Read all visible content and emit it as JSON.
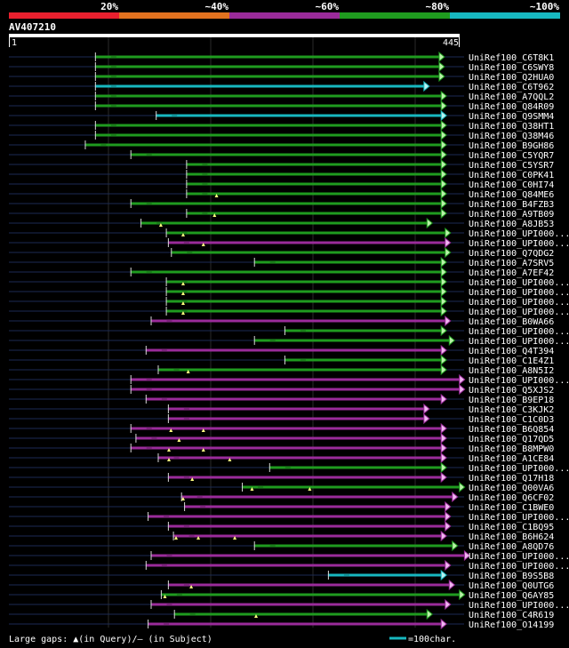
{
  "identity_scale": {
    "segments": [
      {
        "label": "20%",
        "color": "#e8202e"
      },
      {
        "label": "~40%",
        "color": "#e2721f"
      },
      {
        "label": "~60%",
        "color": "#9a2b9a"
      },
      {
        "label": "~80%",
        "color": "#1f9b1f"
      },
      {
        "label": "~100%",
        "color": "#17b8c0"
      }
    ]
  },
  "query": {
    "id": "AV407210",
    "start": 1,
    "end": 445,
    "start_label": "1",
    "end_label": "445"
  },
  "colors": {
    "background": "#000000",
    "query_bar": "#ffffff",
    "grid": "#2a2a2a",
    "unaligned_line": "#1b2a55",
    "gap_marker": "#ffff80"
  },
  "legend": {
    "text": "Large gaps: ▲(in Query)/– (in Subject)",
    "scale_text": "=100char.",
    "scale_color": "#17b8c0",
    "scale_length": 100
  },
  "chart_data": {
    "type": "alignment_overview",
    "query_length": 445,
    "alignments": [
      {
        "name": "UniRef100_C6T8K1",
        "start": 85,
        "end": 430,
        "cls": "green",
        "gaps": []
      },
      {
        "name": "UniRef100_C6SWY8",
        "start": 85,
        "end": 430,
        "cls": "green",
        "gaps": []
      },
      {
        "name": "UniRef100_Q2HUA0",
        "start": 85,
        "end": 430,
        "cls": "green",
        "gaps": []
      },
      {
        "name": "UniRef100_C6T962",
        "start": 85,
        "end": 415,
        "cls": "cyan",
        "gaps": []
      },
      {
        "name": "UniRef100_A7QQL2",
        "start": 85,
        "end": 432,
        "cls": "green",
        "gaps": []
      },
      {
        "name": "UniRef100_Q84R09",
        "start": 85,
        "end": 432,
        "cls": "green",
        "gaps": []
      },
      {
        "name": "UniRef100_Q9SMM4",
        "start": 145,
        "end": 432,
        "cls": "cyan",
        "gaps": []
      },
      {
        "name": "UniRef100_Q38HT1",
        "start": 85,
        "end": 432,
        "cls": "green",
        "gaps": []
      },
      {
        "name": "UniRef100_Q38M46",
        "start": 85,
        "end": 432,
        "cls": "green",
        "gaps": []
      },
      {
        "name": "UniRef100_B9GH86",
        "start": 75,
        "end": 432,
        "cls": "green",
        "gaps": []
      },
      {
        "name": "UniRef100_C5YQR7",
        "start": 120,
        "end": 432,
        "cls": "green",
        "gaps": []
      },
      {
        "name": "UniRef100_C5YSR7",
        "start": 175,
        "end": 432,
        "cls": "green",
        "gaps": []
      },
      {
        "name": "UniRef100_C0PK41",
        "start": 175,
        "end": 432,
        "cls": "green",
        "gaps": []
      },
      {
        "name": "UniRef100_C0HI74",
        "start": 175,
        "end": 432,
        "cls": "green",
        "gaps": []
      },
      {
        "name": "UniRef100_Q84ME6",
        "start": 175,
        "end": 432,
        "cls": "green",
        "gaps": [
          205
        ]
      },
      {
        "name": "UniRef100_B4FZB3",
        "start": 120,
        "end": 432,
        "cls": "green",
        "gaps": []
      },
      {
        "name": "UniRef100_A9TB09",
        "start": 175,
        "end": 432,
        "cls": "green",
        "gaps": [
          203
        ]
      },
      {
        "name": "UniRef100_A8JB53",
        "start": 130,
        "end": 418,
        "cls": "green",
        "gaps": [
          150
        ]
      },
      {
        "name": "UniRef100_UPI000...",
        "start": 155,
        "end": 436,
        "cls": "green",
        "gaps": [
          172
        ]
      },
      {
        "name": "UniRef100_UPI000...",
        "start": 157,
        "end": 436,
        "cls": "purple",
        "gaps": [
          192
        ]
      },
      {
        "name": "UniRef100_Q7QDG2",
        "start": 160,
        "end": 436,
        "cls": "green",
        "gaps": []
      },
      {
        "name": "UniRef100_A7SRV5",
        "start": 242,
        "end": 432,
        "cls": "green",
        "gaps": []
      },
      {
        "name": "UniRef100_A7EF42",
        "start": 120,
        "end": 432,
        "cls": "green",
        "gaps": []
      },
      {
        "name": "UniRef100_UPI000...",
        "start": 155,
        "end": 432,
        "cls": "green",
        "gaps": [
          172
        ]
      },
      {
        "name": "UniRef100_UPI000...",
        "start": 155,
        "end": 432,
        "cls": "green",
        "gaps": [
          172
        ]
      },
      {
        "name": "UniRef100_UPI000...",
        "start": 155,
        "end": 432,
        "cls": "green",
        "gaps": [
          172
        ]
      },
      {
        "name": "UniRef100_UPI000...",
        "start": 155,
        "end": 432,
        "cls": "green",
        "gaps": [
          172
        ]
      },
      {
        "name": "UniRef100_B0WA66",
        "start": 140,
        "end": 436,
        "cls": "purple",
        "gaps": []
      },
      {
        "name": "UniRef100_UPI000...",
        "start": 272,
        "end": 432,
        "cls": "green",
        "gaps": []
      },
      {
        "name": "UniRef100_UPI000...",
        "start": 242,
        "end": 440,
        "cls": "green",
        "gaps": []
      },
      {
        "name": "UniRef100_Q4T394",
        "start": 135,
        "end": 432,
        "cls": "purple",
        "gaps": []
      },
      {
        "name": "UniRef100_C1E4Z1",
        "start": 272,
        "end": 432,
        "cls": "green",
        "gaps": []
      },
      {
        "name": "UniRef100_A8N5I2",
        "start": 147,
        "end": 432,
        "cls": "green",
        "gaps": [
          177
        ]
      },
      {
        "name": "UniRef100_UPI000...",
        "start": 120,
        "end": 450,
        "cls": "purple",
        "gaps": []
      },
      {
        "name": "UniRef100_Q5XJS2",
        "start": 120,
        "end": 450,
        "cls": "purple",
        "gaps": []
      },
      {
        "name": "UniRef100_B9EP18",
        "start": 135,
        "end": 432,
        "cls": "purple",
        "gaps": []
      },
      {
        "name": "UniRef100_C3KJK2",
        "start": 157,
        "end": 415,
        "cls": "purple",
        "gaps": []
      },
      {
        "name": "UniRef100_C1C0D3",
        "start": 157,
        "end": 415,
        "cls": "purple",
        "gaps": []
      },
      {
        "name": "UniRef100_B6Q854",
        "start": 120,
        "end": 432,
        "cls": "purple",
        "gaps": [
          160,
          192
        ]
      },
      {
        "name": "UniRef100_Q17QD5",
        "start": 125,
        "end": 432,
        "cls": "purple",
        "gaps": [
          168
        ]
      },
      {
        "name": "UniRef100_B8MPW0",
        "start": 120,
        "end": 432,
        "cls": "purple",
        "gaps": [
          158,
          192
        ]
      },
      {
        "name": "UniRef100_A1CE84",
        "start": 147,
        "end": 432,
        "cls": "purple",
        "gaps": [
          158,
          218
        ]
      },
      {
        "name": "UniRef100_UPI000...",
        "start": 257,
        "end": 432,
        "cls": "green",
        "gaps": []
      },
      {
        "name": "UniRef100_Q17H18",
        "start": 157,
        "end": 432,
        "cls": "purple",
        "gaps": [
          181
        ]
      },
      {
        "name": "UniRef100_Q00VA6",
        "start": 230,
        "end": 450,
        "cls": "green",
        "gaps": [
          240,
          297
        ]
      },
      {
        "name": "UniRef100_Q6CF02",
        "start": 170,
        "end": 443,
        "cls": "purple",
        "gaps": [
          172
        ]
      },
      {
        "name": "UniRef100_C1BWE0",
        "start": 173,
        "end": 436,
        "cls": "purple",
        "gaps": []
      },
      {
        "name": "UniRef100_UPI000...",
        "start": 137,
        "end": 436,
        "cls": "purple",
        "gaps": []
      },
      {
        "name": "UniRef100_C1BQ95",
        "start": 157,
        "end": 436,
        "cls": "purple",
        "gaps": []
      },
      {
        "name": "UniRef100_B6H624",
        "start": 162,
        "end": 432,
        "cls": "purple",
        "gaps": [
          165,
          187,
          223
        ]
      },
      {
        "name": "UniRef100_A8QD76",
        "start": 242,
        "end": 443,
        "cls": "green",
        "gaps": []
      },
      {
        "name": "UniRef100_UPI000...",
        "start": 140,
        "end": 455,
        "cls": "purple",
        "gaps": []
      },
      {
        "name": "UniRef100_UPI000...",
        "start": 135,
        "end": 436,
        "cls": "purple",
        "gaps": []
      },
      {
        "name": "UniRef100_B9S5B8",
        "start": 315,
        "end": 432,
        "cls": "cyan",
        "gaps": []
      },
      {
        "name": "UniRef100_Q0UTG6",
        "start": 157,
        "end": 440,
        "cls": "purple",
        "gaps": [
          180
        ]
      },
      {
        "name": "UniRef100_Q6AY85",
        "start": 150,
        "end": 450,
        "cls": "green",
        "gaps": [
          154
        ]
      },
      {
        "name": "UniRef100_UPI000...",
        "start": 140,
        "end": 436,
        "cls": "purple",
        "gaps": []
      },
      {
        "name": "UniRef100_C4R619",
        "start": 163,
        "end": 418,
        "cls": "green",
        "gaps": [
          244
        ]
      },
      {
        "name": "UniRef100_O14199",
        "start": 137,
        "end": 432,
        "cls": "purple",
        "gaps": []
      }
    ]
  }
}
